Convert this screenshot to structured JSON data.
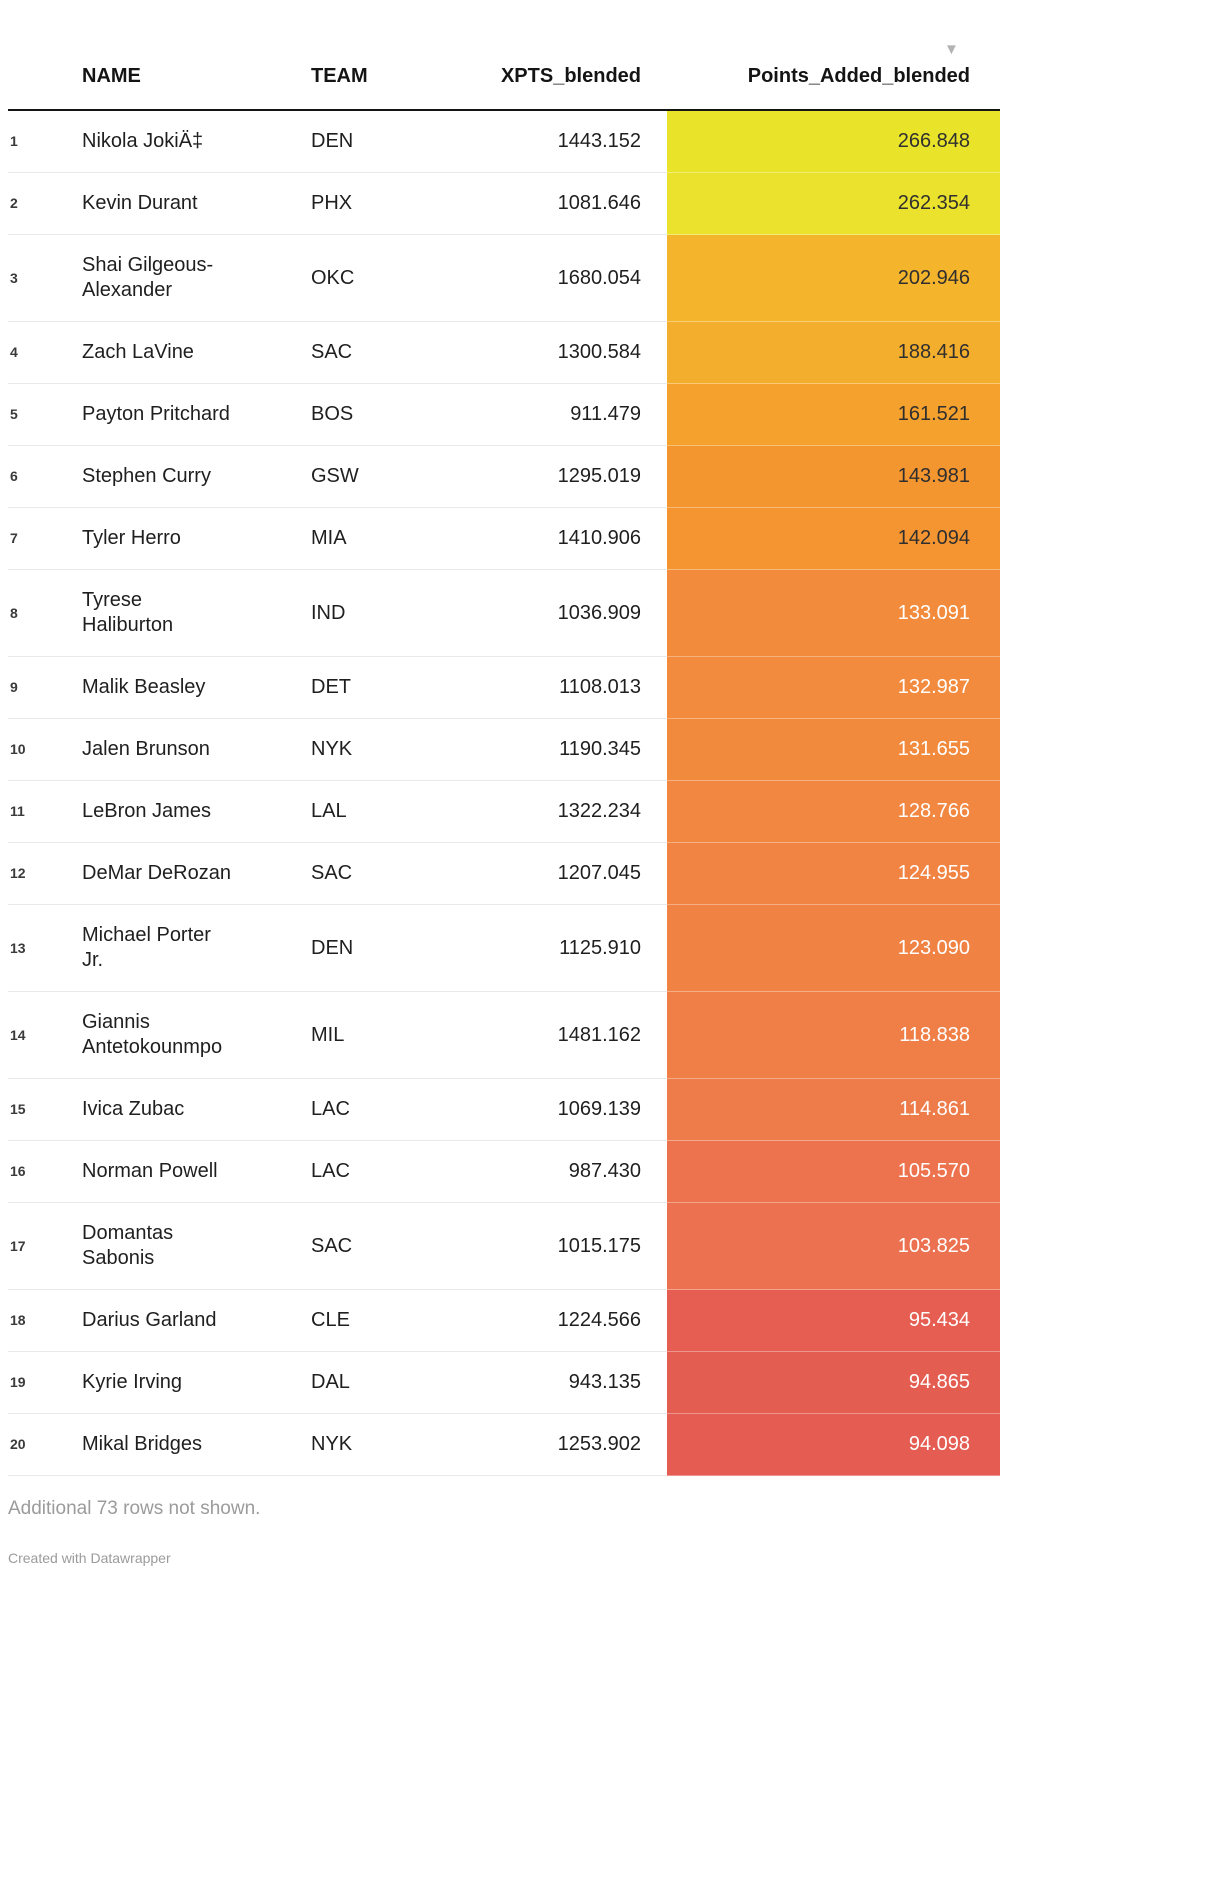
{
  "ui": {
    "sort_indicator": "▼"
  },
  "chart_data": {
    "type": "table",
    "columns": [
      "NAME",
      "TEAM",
      "XPTS_blended",
      "Points_Added_blended"
    ],
    "sorted_by": "Points_Added_blended",
    "sort_direction": "descending",
    "heatmap_column": "Points_Added_blended",
    "rows": [
      {
        "rank": "1",
        "name": "Nikola JokiÄ‡",
        "team": "DEN",
        "xpts": "1443.152",
        "points": "266.848",
        "bg": "#e9e42a",
        "fg": "#2f2f2f"
      },
      {
        "rank": "2",
        "name": "Kevin Durant",
        "team": "PHX",
        "xpts": "1081.646",
        "points": "262.354",
        "bg": "#eae22c",
        "fg": "#2f2f2f"
      },
      {
        "rank": "3",
        "name": "Shai Gilgeous-\nAlexander",
        "team": "OKC",
        "xpts": "1680.054",
        "points": "202.946",
        "bg": "#f4b42c",
        "fg": "#2f2f2f"
      },
      {
        "rank": "4",
        "name": "Zach LaVine",
        "team": "SAC",
        "xpts": "1300.584",
        "points": "188.416",
        "bg": "#f4ae2d",
        "fg": "#2f2f2f"
      },
      {
        "rank": "5",
        "name": "Payton Pritchard",
        "team": "BOS",
        "xpts": "911.479",
        "points": "161.521",
        "bg": "#f4a12d",
        "fg": "#2f2f2f"
      },
      {
        "rank": "6",
        "name": "Stephen Curry",
        "team": "GSW",
        "xpts": "1295.019",
        "points": "143.981",
        "bg": "#f49630",
        "fg": "#2f2f2f"
      },
      {
        "rank": "7",
        "name": "Tyler Herro",
        "team": "MIA",
        "xpts": "1410.906",
        "points": "142.094",
        "bg": "#f49531",
        "fg": "#2f2f2f"
      },
      {
        "rank": "8",
        "name": "Tyrese\nHaliburton",
        "team": "IND",
        "xpts": "1036.909",
        "points": "133.091",
        "bg": "#f28b3c",
        "fg": "#ffffff"
      },
      {
        "rank": "9",
        "name": "Malik Beasley",
        "team": "DET",
        "xpts": "1108.013",
        "points": "132.987",
        "bg": "#f28b3d",
        "fg": "#ffffff"
      },
      {
        "rank": "10",
        "name": "Jalen Brunson",
        "team": "NYK",
        "xpts": "1190.345",
        "points": "131.655",
        "bg": "#f28a3e",
        "fg": "#ffffff"
      },
      {
        "rank": "11",
        "name": "LeBron James",
        "team": "LAL",
        "xpts": "1322.234",
        "points": "128.766",
        "bg": "#f18740",
        "fg": "#ffffff"
      },
      {
        "rank": "12",
        "name": "DeMar DeRozan",
        "team": "SAC",
        "xpts": "1207.045",
        "points": "124.955",
        "bg": "#f18443",
        "fg": "#ffffff"
      },
      {
        "rank": "13",
        "name": "Michael Porter\nJr.",
        "team": "DEN",
        "xpts": "1125.910",
        "points": "123.090",
        "bg": "#f08344",
        "fg": "#ffffff"
      },
      {
        "rank": "14",
        "name": "Giannis\nAntetokounmpo",
        "team": "MIL",
        "xpts": "1481.162",
        "points": "118.838",
        "bg": "#ef7f47",
        "fg": "#ffffff"
      },
      {
        "rank": "15",
        "name": "Ivica Zubac",
        "team": "LAC",
        "xpts": "1069.139",
        "points": "114.861",
        "bg": "#ee7b4a",
        "fg": "#ffffff"
      },
      {
        "rank": "16",
        "name": "Norman Powell",
        "team": "LAC",
        "xpts": "987.430",
        "points": "105.570",
        "bg": "#ec734e",
        "fg": "#ffffff"
      },
      {
        "rank": "17",
        "name": "Domantas\nSabonis",
        "team": "SAC",
        "xpts": "1015.175",
        "points": "103.825",
        "bg": "#eb7150",
        "fg": "#ffffff"
      },
      {
        "rank": "18",
        "name": "Darius Garland",
        "team": "CLE",
        "xpts": "1224.566",
        "points": "95.434",
        "bg": "#e55e51",
        "fg": "#ffffff"
      },
      {
        "rank": "19",
        "name": "Kyrie Irving",
        "team": "DAL",
        "xpts": "943.135",
        "points": "94.865",
        "bg": "#e45d51",
        "fg": "#ffffff"
      },
      {
        "rank": "20",
        "name": "Mikal Bridges",
        "team": "NYK",
        "xpts": "1253.902",
        "points": "94.098",
        "bg": "#e45c52",
        "fg": "#ffffff"
      }
    ]
  },
  "footer": {
    "note": "Additional 73 rows not shown.",
    "credit": "Created with Datawrapper"
  }
}
